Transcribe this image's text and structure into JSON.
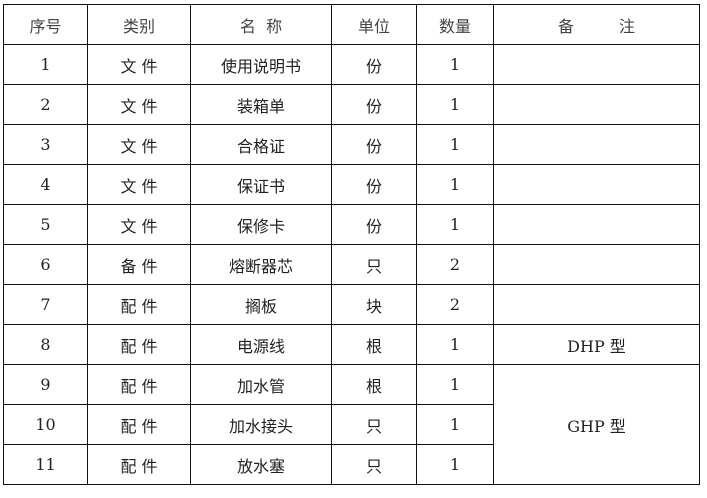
{
  "headers": [
    "序号",
    "类别",
    "名  称",
    "单位",
    "数量",
    "备 注"
  ],
  "rows": [
    {
      "no": "1",
      "category": "文 件",
      "name": "使用说明书",
      "unit": "份",
      "qty": "1",
      "remark": ""
    },
    {
      "no": "2",
      "category": "文 件",
      "name": "装箱单",
      "unit": "份",
      "qty": "1",
      "remark": ""
    },
    {
      "no": "3",
      "category": "文 件",
      "name": "合格证",
      "unit": "份",
      "qty": "1",
      "remark": ""
    },
    {
      "no": "4",
      "category": "文 件",
      "name": "保证书",
      "unit": "份",
      "qty": "1",
      "remark": ""
    },
    {
      "no": "5",
      "category": "文 件",
      "name": "保修卡",
      "unit": "份",
      "qty": "1",
      "remark": ""
    },
    {
      "no": "6",
      "category": "备 件",
      "name": "熔断器芯",
      "unit": "只",
      "qty": "2",
      "remark": ""
    },
    {
      "no": "7",
      "category": "配 件",
      "name": "搁板",
      "unit": "块",
      "qty": "2",
      "remark": ""
    },
    {
      "no": "8",
      "category": "配 件",
      "name": "电源线",
      "unit": "根",
      "qty": "1",
      "remark": "DHP 型"
    },
    {
      "no": "9",
      "category": "配 件",
      "name": "加水管",
      "unit": "根",
      "qty": "1",
      "remark": "GHP 型",
      "remark_rowspan": 3
    },
    {
      "no": "10",
      "category": "配 件",
      "name": "加水接头",
      "unit": "只",
      "qty": "1"
    },
    {
      "no": "11",
      "category": "配 件",
      "name": "放水塞",
      "unit": "只",
      "qty": "1"
    }
  ]
}
